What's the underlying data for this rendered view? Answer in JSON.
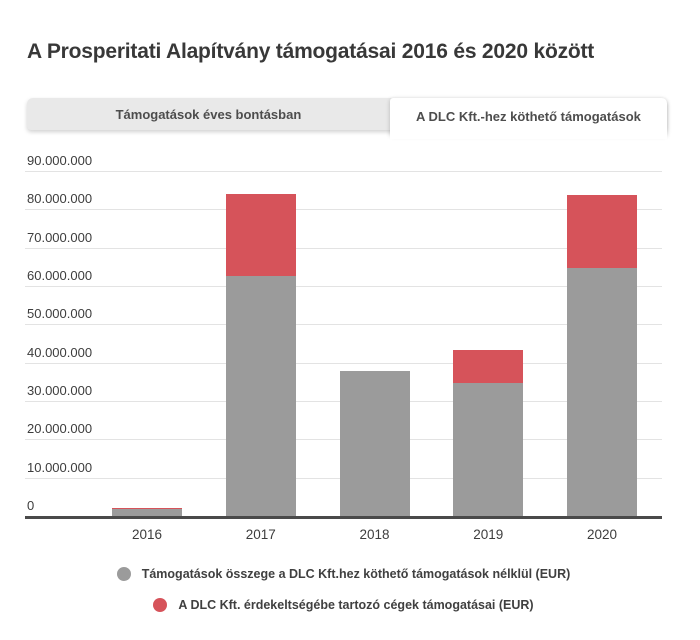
{
  "page": {
    "title": "A Prosperitati Alapítvány támogatásai 2016 és 2020 között"
  },
  "tabs": [
    {
      "name": "tab-yearly-breakdown",
      "label": "Támogatások éves bontásban",
      "active": false
    },
    {
      "name": "tab-dlc-related-grants",
      "label": "A DLC Kft.-hez köthető támogatások",
      "active": true
    }
  ],
  "chart_data": {
    "type": "bar",
    "stacked": true,
    "title": "A Prosperitati Alapítvány támogatásai 2016 és 2020 között",
    "categories": [
      "2016",
      "2017",
      "2018",
      "2019",
      "2020"
    ],
    "series": [
      {
        "name": "Támogatások összege a DLC Kft.hez köthető támogatások nélklül (EUR)",
        "color": "#9b9b9b",
        "values": [
          1800000,
          62600000,
          37800000,
          34800000,
          64600000
        ]
      },
      {
        "name": "A DLC Kft. érdekeltségébe tartozó cégek támogatásai (EUR)",
        "color": "#d6535a",
        "values": [
          400000,
          21300000,
          0,
          8400000,
          19200000
        ]
      }
    ],
    "y_ticks": [
      {
        "label": "90.000.000",
        "value": 90000000
      },
      {
        "label": "80.000.000",
        "value": 80000000
      },
      {
        "label": "70.000.000",
        "value": 70000000
      },
      {
        "label": "60.000.000",
        "value": 60000000
      },
      {
        "label": "50.000.000",
        "value": 50000000
      },
      {
        "label": "40.000.000",
        "value": 40000000
      },
      {
        "label": "30.000.000",
        "value": 30000000
      },
      {
        "label": "20.000.000",
        "value": 20000000
      },
      {
        "label": "10.000.000",
        "value": 10000000
      },
      {
        "label": "0",
        "value": 0
      }
    ],
    "ylim": [
      0,
      90000000
    ],
    "xlabel": "",
    "ylabel": "",
    "grid": true,
    "legend_position": "bottom"
  },
  "colors": {
    "bar_gray": "#9b9b9b",
    "bar_red": "#d6535a",
    "baseline": "#4a4a4a",
    "gridline": "#e3e3e3",
    "tab_background": "#e9e9e9"
  }
}
